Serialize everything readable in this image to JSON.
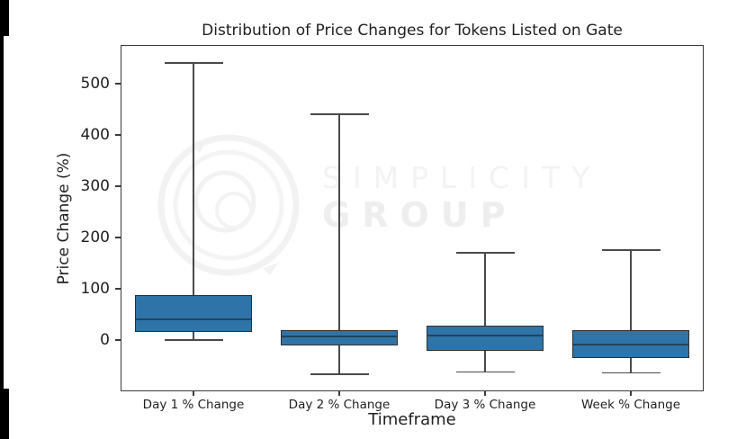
{
  "chart_data": {
    "type": "box",
    "title": "Distribution of Price Changes for Tokens Listed on Gate",
    "xlabel": "Timeframe",
    "ylabel": "Price Change (%)",
    "categories": [
      "Day 1 % Change",
      "Day 2 % Change",
      "Day 3 % Change",
      "Week % Change"
    ],
    "series": [
      {
        "name": "Day 1 % Change",
        "whisker_low": 0,
        "q1": 15,
        "median": 40,
        "q3": 87,
        "whisker_high": 540
      },
      {
        "name": "Day 2 % Change",
        "whisker_low": -67,
        "q1": -11,
        "median": 7,
        "q3": 19,
        "whisker_high": 440
      },
      {
        "name": "Day 3 % Change",
        "whisker_low": -62,
        "q1": -21,
        "median": 9,
        "q3": 28,
        "whisker_high": 170
      },
      {
        "name": "Week % Change",
        "whisker_low": -64,
        "q1": -35,
        "median": -9,
        "q3": 19,
        "whisker_high": 175
      }
    ],
    "ylim": [
      -100,
      575
    ],
    "yticks": [
      0,
      100,
      200,
      300,
      400,
      500
    ],
    "grid": false,
    "legend_position": "none",
    "colors": {
      "box_fill": "#2e74a8",
      "box_edge": "#2f2f2f",
      "whisker": "#4a4a4a",
      "median": "#24435a"
    }
  },
  "watermark": {
    "line1": "SIMPLICITY",
    "line2": "GROUP"
  }
}
